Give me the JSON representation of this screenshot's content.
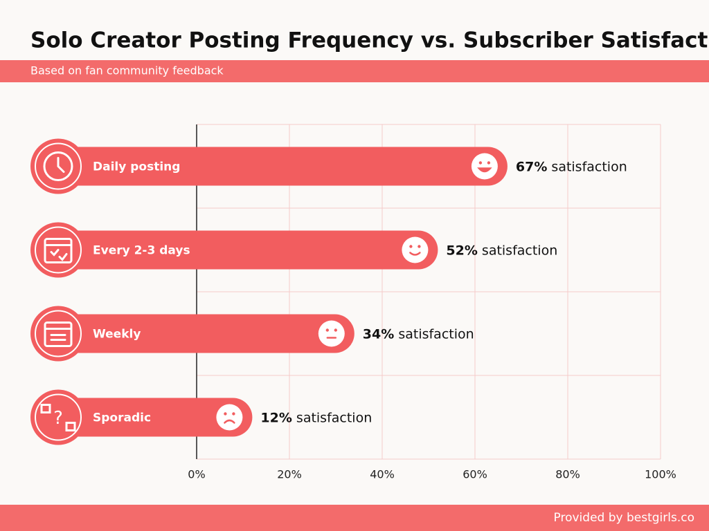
{
  "chart_data": {
    "type": "bar",
    "orientation": "horizontal",
    "title": "Solo Creator Posting Frequency vs. Subscriber Satisfaction",
    "subtitle": "Based on fan community feedback",
    "footer": "Provided by bestgirls.co",
    "categories": [
      "Daily posting",
      "Every 2-3 days",
      "Weekly",
      "Sporadic"
    ],
    "values": [
      67,
      52,
      34,
      12
    ],
    "value_labels": [
      "67% satisfaction",
      "52% satisfaction",
      "34% satisfaction",
      "12% satisfaction"
    ],
    "color": "#f25d5f",
    "xlim": [
      0,
      100
    ],
    "xticks": [
      {
        "value": 0,
        "label": "0%"
      },
      {
        "value": 20,
        "label": "20%"
      },
      {
        "value": 40,
        "label": "40%"
      },
      {
        "value": 60,
        "label": "60%"
      },
      {
        "value": 80,
        "label": "80%"
      },
      {
        "value": 100,
        "label": "100%"
      }
    ],
    "grid": true
  }
}
